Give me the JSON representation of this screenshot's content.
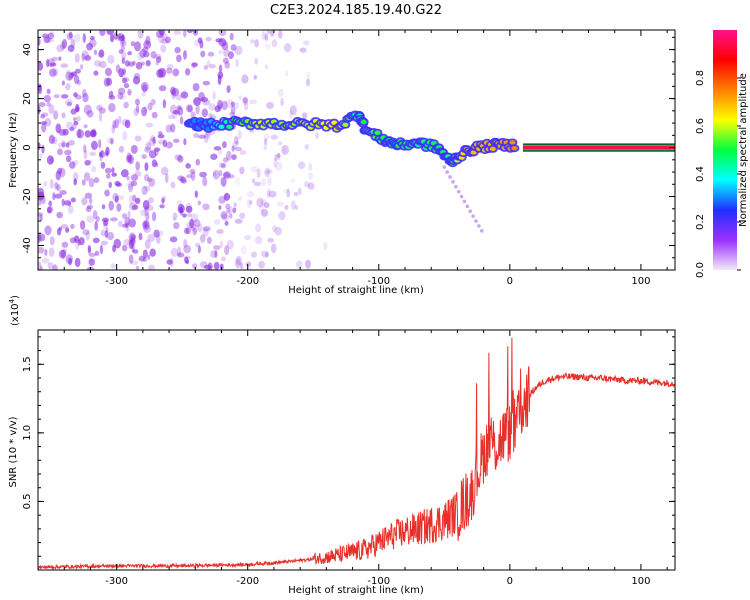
{
  "title": "C2E3.2024.185.19.40.G22",
  "chart_data": [
    {
      "type": "heatmap",
      "title": "C2E3.2024.185.19.40.G22",
      "xlabel": "Height of straight line (km)",
      "ylabel": "Frequency (Hz)",
      "xlim": [
        -360,
        126
      ],
      "ylim": [
        -50,
        48
      ],
      "xticks": [
        -300,
        -200,
        -100,
        0,
        100
      ],
      "xtick_labels": [
        "-300",
        "-200",
        "-100",
        "0",
        "100"
      ],
      "yticks": [
        -40,
        -20,
        0,
        20,
        40
      ],
      "ytick_labels": [
        "-40",
        "-20",
        "0",
        "20",
        "40"
      ],
      "colorbar": {
        "label": "Normalized spectral amplitude",
        "range": [
          0,
          1
        ],
        "ticks": [
          0.0,
          0.2,
          0.4,
          0.6,
          0.8
        ],
        "tick_labels": [
          "0.0",
          "0.2",
          "0.4",
          "0.6",
          "0.8"
        ],
        "colors": [
          "#f2e8fa",
          "#9b30ff",
          "#2030ff",
          "#00ffff",
          "#00ff40",
          "#ffff00",
          "#ff8000",
          "#ff0000",
          "#ff1090"
        ]
      },
      "noise_region": {
        "x_range": [
          -360,
          -140
        ],
        "y_range": [
          -50,
          48
        ],
        "amplitude": 0.15,
        "color": "#8a2be2"
      },
      "signal_track": [
        {
          "x": -245,
          "y": 10,
          "amp": 0.3
        },
        {
          "x": -230,
          "y": 9,
          "amp": 0.3
        },
        {
          "x": -210,
          "y": 10,
          "amp": 0.5
        },
        {
          "x": -190,
          "y": 10,
          "amp": 0.6
        },
        {
          "x": -170,
          "y": 9.5,
          "amp": 0.55
        },
        {
          "x": -150,
          "y": 9.5,
          "amp": 0.6
        },
        {
          "x": -130,
          "y": 9,
          "amp": 0.65
        },
        {
          "x": -115,
          "y": 14,
          "amp": 0.4
        },
        {
          "x": -110,
          "y": 7,
          "amp": 0.55
        },
        {
          "x": -95,
          "y": 3,
          "amp": 0.5
        },
        {
          "x": -85,
          "y": 1,
          "amp": 0.5
        },
        {
          "x": -70,
          "y": 2,
          "amp": 0.45
        },
        {
          "x": -55,
          "y": 0,
          "amp": 0.5
        },
        {
          "x": -45,
          "y": -6,
          "amp": 0.45
        },
        {
          "x": -38,
          "y": -3,
          "amp": 0.65
        },
        {
          "x": -25,
          "y": 0,
          "amp": 0.7
        },
        {
          "x": -10,
          "y": 1,
          "amp": 0.7
        },
        {
          "x": 5,
          "y": 1,
          "amp": 0.75
        }
      ],
      "carrier_line": {
        "x_start": 10,
        "x_end": 126,
        "y": 0,
        "amp": 0.95
      }
    },
    {
      "type": "line",
      "title": "",
      "xlabel": "Height of straight line (km)",
      "ylabel": "SNR (10 * v/v)",
      "y_multiplier_label": "(x10",
      "y_multiplier_exp": "4",
      "y_multiplier_close": ")",
      "xlim": [
        -360,
        126
      ],
      "ylim": [
        0,
        1.75
      ],
      "xticks": [
        -300,
        -200,
        -100,
        0,
        100
      ],
      "xtick_labels": [
        "-300",
        "-200",
        "-100",
        "0",
        "100"
      ],
      "yticks": [
        0.5,
        1.0,
        1.5
      ],
      "ytick_labels": [
        "0.5",
        "1.0",
        "1.5"
      ],
      "series": [
        {
          "color": "#e8302a",
          "x": [
            -360,
            -300,
            -250,
            -200,
            -170,
            -150,
            -130,
            -110,
            -100,
            -90,
            -80,
            -70,
            -60,
            -50,
            -40,
            -30,
            -25,
            -20,
            -15,
            -10,
            -5,
            0,
            5,
            10,
            15,
            20,
            25,
            30,
            40,
            50,
            60,
            70,
            80,
            90,
            100,
            110,
            126
          ],
          "y": [
            0.02,
            0.03,
            0.03,
            0.04,
            0.06,
            0.08,
            0.11,
            0.15,
            0.2,
            0.25,
            0.28,
            0.3,
            0.33,
            0.36,
            0.42,
            0.55,
            0.7,
            0.85,
            0.95,
            0.9,
            0.98,
            1.0,
            1.05,
            1.2,
            1.28,
            1.33,
            1.37,
            1.39,
            1.41,
            1.41,
            1.4,
            1.4,
            1.39,
            1.38,
            1.38,
            1.37,
            1.36
          ]
        }
      ]
    }
  ]
}
